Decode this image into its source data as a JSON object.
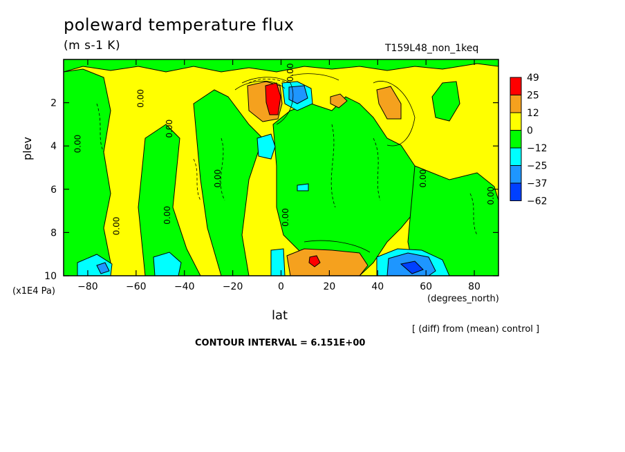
{
  "header": {
    "title": "poleward temperature flux",
    "units": "(m s-1 K)",
    "run_name": "T159L48_non_1keq"
  },
  "footer": {
    "diff_note": "[ (diff) from (mean) control ]",
    "contour_interval": "CONTOUR INTERVAL = 6.151E+00"
  },
  "chart_data": {
    "type": "heatmap",
    "xlabel": "lat",
    "x_unit": "(degrees_north)",
    "ylabel": "plev",
    "y_unit": "(x1E4 Pa)",
    "xlim": [
      -90,
      90
    ],
    "ylim": [
      0,
      10
    ],
    "y_reversed": true,
    "x_ticks": [
      -80,
      -60,
      -40,
      -20,
      0,
      20,
      40,
      60,
      80
    ],
    "y_ticks": [
      2,
      4,
      6,
      8,
      10
    ],
    "colorbar": {
      "labels": [
        "49",
        "25",
        "12",
        "0",
        "−12",
        "−25",
        "−37",
        "−62"
      ],
      "colors": [
        "#ff0000",
        "#f5a11e",
        "#ffff00",
        "#00ff00",
        "#00ffff",
        "#1e96ff",
        "#0040ff"
      ]
    },
    "contour_label": "0.00",
    "features": [
      {
        "kind": "max",
        "lat": -3,
        "plev": 2.0,
        "value": 49
      },
      {
        "kind": "min",
        "lat": 5,
        "plev": 1.5,
        "value": -25
      },
      {
        "kind": "min",
        "lat": -5,
        "plev": 3.8,
        "value": -25
      },
      {
        "kind": "max",
        "lat": 12,
        "plev": 9.5,
        "value": 49
      },
      {
        "kind": "min",
        "lat": 48,
        "plev": 9.6,
        "value": -62
      },
      {
        "kind": "max",
        "lat": 45,
        "plev": 2.5,
        "value": 25
      }
    ]
  }
}
